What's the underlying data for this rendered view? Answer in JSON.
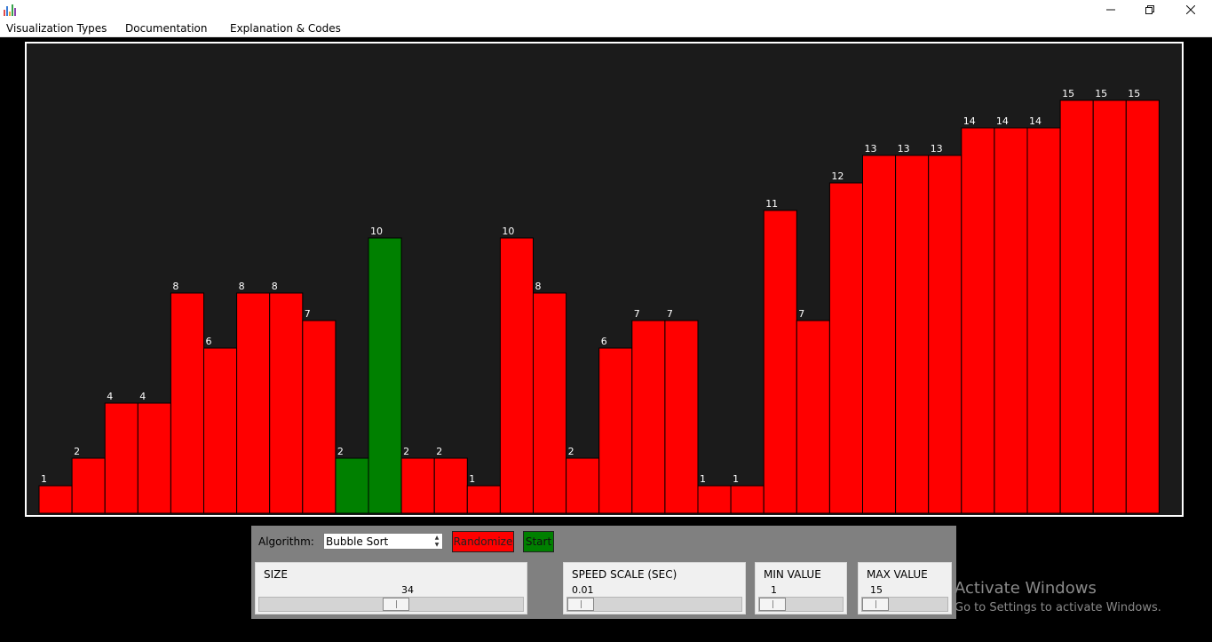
{
  "window": {
    "icon": "bar-chart-icon",
    "controls": {
      "minimize": "minimize-icon",
      "restore": "restore-icon",
      "close": "close-icon"
    }
  },
  "menu": [
    "Visualization Types",
    "Documentation",
    "Explanation & Codes"
  ],
  "bars": {
    "values": [
      1,
      2,
      4,
      4,
      8,
      6,
      8,
      8,
      7,
      2,
      10,
      2,
      2,
      1,
      10,
      8,
      2,
      6,
      7,
      7,
      1,
      1,
      11,
      7,
      12,
      13,
      13,
      13,
      14,
      14,
      14,
      15,
      15,
      15
    ],
    "highlighted": [
      9,
      10
    ],
    "colors": {
      "default": "#ff0000",
      "highlight": "#008000",
      "background": "#1b1b1b"
    }
  },
  "controls": {
    "algorithm_label": "Algorithm:",
    "algorithm_value": "Bubble Sort",
    "randomize_label": "Randomize",
    "start_label": "Start",
    "size": {
      "label": "SIZE",
      "value": "34",
      "level": 0.52
    },
    "speed": {
      "label": "SPEED SCALE (SEC)",
      "value": "0.01",
      "level": 0.0
    },
    "min_value": {
      "label": "MIN VALUE",
      "value": "1",
      "level": 0.0
    },
    "max_value": {
      "label": "MAX VALUE",
      "value": "15",
      "level": 0.0
    }
  },
  "watermark": {
    "title": "Activate Windows",
    "subtitle": "Go to Settings to activate Windows."
  }
}
